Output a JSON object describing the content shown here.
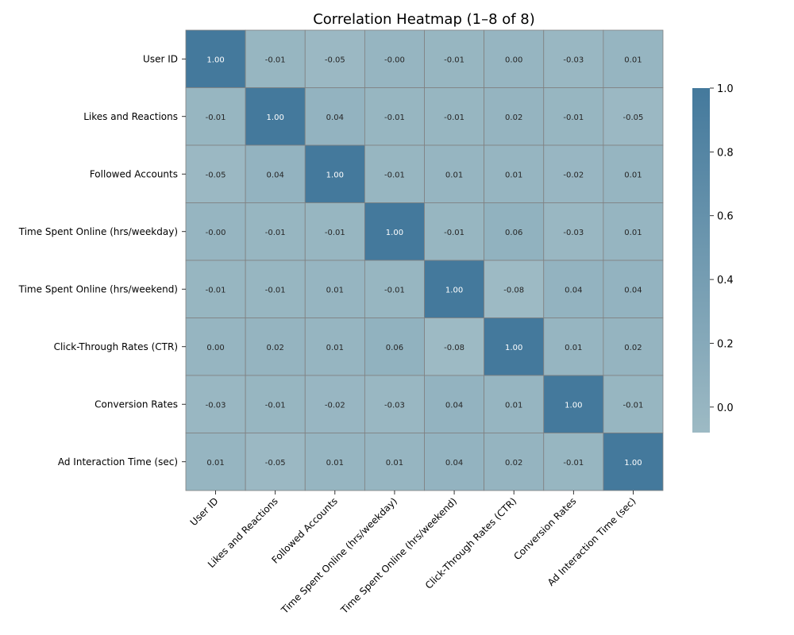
{
  "chart_data": {
    "type": "heatmap",
    "title": "Correlation Heatmap (1–8 of 8)",
    "labels": [
      "User ID",
      "Likes and Reactions",
      "Followed Accounts",
      "Time Spent Online (hrs/weekday)",
      "Time Spent Online (hrs/weekend)",
      "Click-Through Rates (CTR)",
      "Conversion Rates",
      "Ad Interaction Time (sec)"
    ],
    "matrix": [
      [
        1.0,
        -0.01,
        -0.05,
        -0.0,
        -0.01,
        0.0,
        -0.03,
        0.01
      ],
      [
        -0.01,
        1.0,
        0.04,
        -0.01,
        -0.01,
        0.02,
        -0.01,
        -0.05
      ],
      [
        -0.05,
        0.04,
        1.0,
        -0.01,
        0.01,
        0.01,
        -0.02,
        0.01
      ],
      [
        -0.0,
        -0.01,
        -0.01,
        1.0,
        -0.01,
        0.06,
        -0.03,
        0.01
      ],
      [
        -0.01,
        -0.01,
        0.01,
        -0.01,
        1.0,
        -0.08,
        0.04,
        0.04
      ],
      [
        0.0,
        0.02,
        0.01,
        0.06,
        -0.08,
        1.0,
        0.01,
        0.02
      ],
      [
        -0.03,
        -0.01,
        -0.02,
        -0.03,
        0.04,
        0.01,
        1.0,
        -0.01
      ],
      [
        0.01,
        -0.05,
        0.01,
        0.01,
        0.04,
        0.02,
        -0.01,
        1.0
      ]
    ],
    "value_labels": [
      [
        "1.00",
        "-0.01",
        "-0.05",
        "-0.00",
        "-0.01",
        "0.00",
        "-0.03",
        "0.01"
      ],
      [
        "-0.01",
        "1.00",
        "0.04",
        "-0.01",
        "-0.01",
        "0.02",
        "-0.01",
        "-0.05"
      ],
      [
        "-0.05",
        "0.04",
        "1.00",
        "-0.01",
        "0.01",
        "0.01",
        "-0.02",
        "0.01"
      ],
      [
        "-0.00",
        "-0.01",
        "-0.01",
        "1.00",
        "-0.01",
        "0.06",
        "-0.03",
        "0.01"
      ],
      [
        "-0.01",
        "-0.01",
        "0.01",
        "-0.01",
        "1.00",
        "-0.08",
        "0.04",
        "0.04"
      ],
      [
        "0.00",
        "0.02",
        "0.01",
        "0.06",
        "-0.08",
        "1.00",
        "0.01",
        "0.02"
      ],
      [
        "-0.03",
        "-0.01",
        "-0.02",
        "-0.03",
        "0.04",
        "0.01",
        "1.00",
        "-0.01"
      ],
      [
        "0.01",
        "-0.05",
        "0.01",
        "0.01",
        "0.04",
        "0.02",
        "-0.01",
        "1.00"
      ]
    ],
    "colorbar": {
      "vmin": -0.08,
      "vmax": 1.0,
      "ticks": [
        0.0,
        0.2,
        0.4,
        0.6,
        0.8,
        1.0
      ],
      "tick_labels": [
        "0.0",
        "0.2",
        "0.4",
        "0.6",
        "0.8",
        "1.0"
      ]
    },
    "colors": {
      "low": "#9dbac4",
      "high": "#44799c",
      "cell_border": "#808080",
      "text_dark": "#262626",
      "text_light": "#ffffff"
    }
  }
}
